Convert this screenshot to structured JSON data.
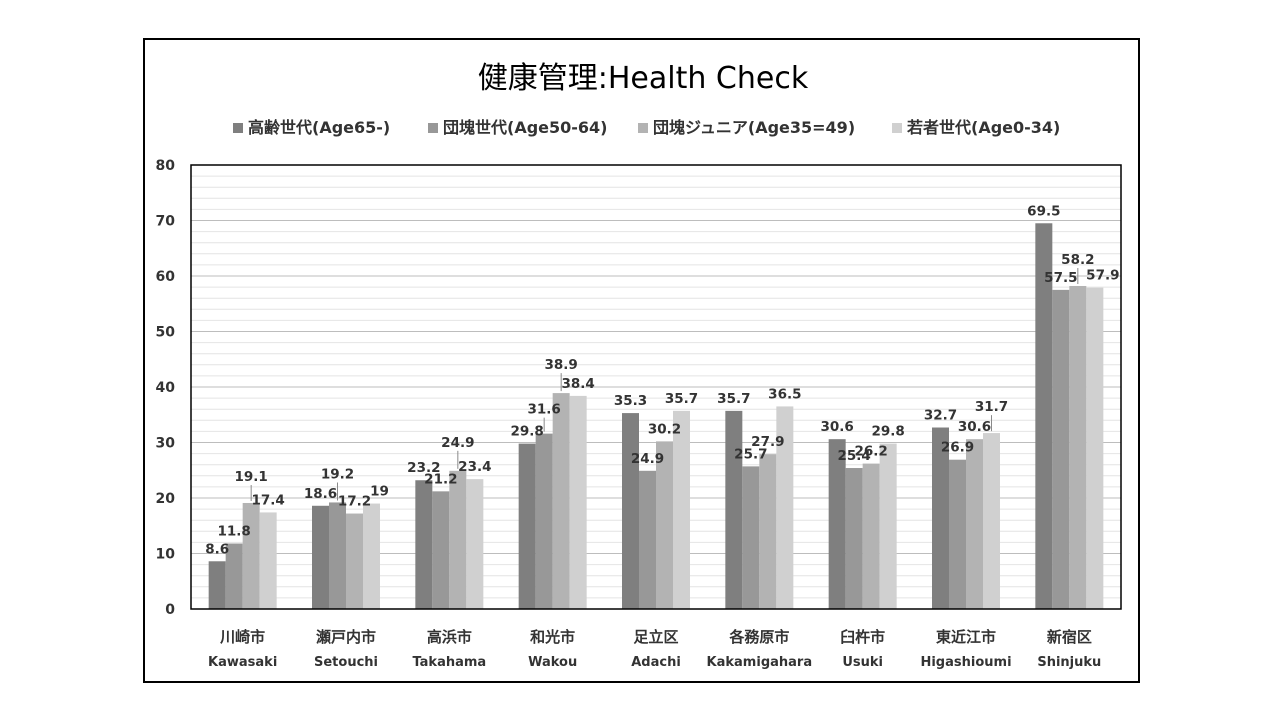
{
  "chart_data": {
    "type": "bar",
    "title": "健康管理:Health Check",
    "categories": [
      {
        "ja": "川崎市",
        "en": "Kawasaki"
      },
      {
        "ja": "瀬戸内市",
        "en": "Setouchi"
      },
      {
        "ja": "高浜市",
        "en": "Takahama"
      },
      {
        "ja": "和光市",
        "en": "Wakou"
      },
      {
        "ja": "足立区",
        "en": "Adachi"
      },
      {
        "ja": "各務原市",
        "en": "Kakamigahara"
      },
      {
        "ja": "臼杵市",
        "en": "Usuki"
      },
      {
        "ja": "東近江市",
        "en": "Higashioumi"
      },
      {
        "ja": "新宿区",
        "en": "Shinjuku"
      }
    ],
    "series": [
      {
        "name": "高齢世代(Age65-)",
        "color": "#7f7f7f",
        "values": [
          8.6,
          18.6,
          23.2,
          29.8,
          35.3,
          35.7,
          30.6,
          32.7,
          69.5
        ]
      },
      {
        "name": "団塊世代(Age50-64)",
        "color": "#989898",
        "values": [
          11.8,
          19.2,
          21.2,
          31.6,
          24.9,
          25.7,
          25.4,
          26.9,
          57.5
        ]
      },
      {
        "name": "団塊ジュニア(Age35=49)",
        "color": "#b3b3b3",
        "values": [
          19.1,
          17.2,
          24.9,
          38.9,
          30.2,
          27.9,
          26.2,
          30.6,
          58.2
        ]
      },
      {
        "name": "若者世代(Age0-34)",
        "color": "#d0d0d0",
        "values": [
          17.4,
          19,
          23.4,
          38.4,
          35.7,
          36.5,
          29.8,
          31.7,
          57.9
        ]
      }
    ],
    "ylim": [
      0,
      80
    ],
    "yticks": [
      0,
      10,
      20,
      30,
      40,
      50,
      60,
      70,
      80
    ],
    "grid": true,
    "legend_position": "top"
  }
}
